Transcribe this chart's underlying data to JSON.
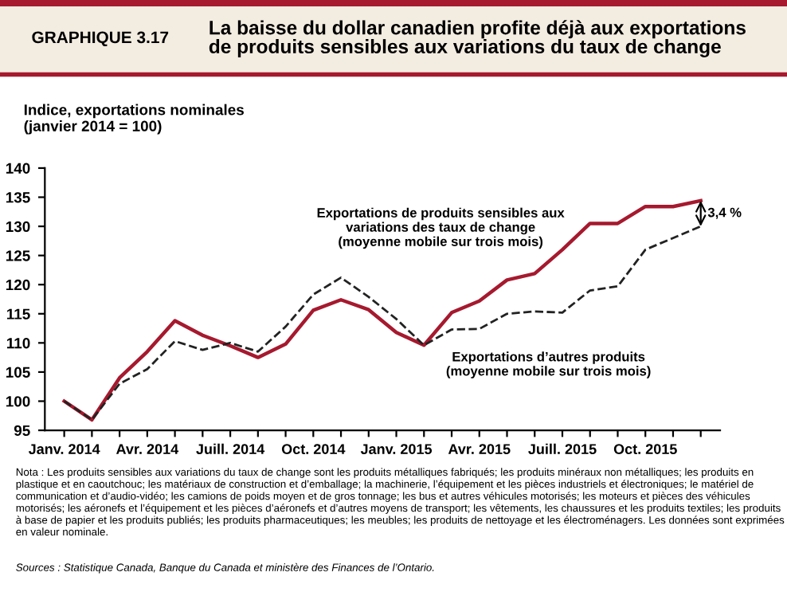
{
  "chart_data": {
    "type": "line",
    "subtitle": "GRAPHIQUE 3.17",
    "title": "La baisse du dollar canadien profite déjà aux exportations\nde produits sensibles aux variations du taux de change",
    "ylabel": "Indice, exportations nominales\n(janvier 2014 = 100)",
    "categories": [
      "Janv. 2014",
      null,
      null,
      "Avr. 2014",
      null,
      null,
      "Juill. 2014",
      null,
      null,
      "Oct. 2014",
      null,
      null,
      "Janv. 2015",
      null,
      null,
      "Avr. 2015",
      null,
      null,
      "Juill. 2015",
      null,
      null,
      "Oct. 2015",
      null,
      null
    ],
    "series": [
      {
        "name": "Exportations de produits sensibles aux\nvariations des taux de change\n(moyenne mobile sur trois mois)",
        "color": "#a6192e",
        "line_style": "solid",
        "values": [
          100,
          96.8,
          104,
          108.5,
          113.8,
          111.3,
          109.5,
          107.5,
          109.8,
          115.6,
          117.4,
          115.7,
          111.8,
          109.6,
          115.2,
          117.2,
          120.8,
          121.9,
          126,
          130.5,
          130.5,
          133.4,
          133.4,
          134.4
        ]
      },
      {
        "name": "Exportations d’autres produits\n(moyenne mobile sur trois mois)",
        "color": "#222222",
        "line_style": "dashed",
        "values": [
          100,
          96.8,
          103,
          105.5,
          110.3,
          108.8,
          110,
          108.5,
          112.8,
          118.3,
          121.2,
          117.9,
          114.1,
          109.6,
          112.3,
          112.4,
          115,
          115.4,
          115.2,
          119,
          119.7,
          126,
          128,
          130
        ]
      }
    ],
    "ylim": [
      95,
      140
    ],
    "yticks": [
      95,
      100,
      105,
      110,
      115,
      120,
      125,
      130,
      135,
      140
    ],
    "grid": false,
    "legend": false,
    "marker": "none",
    "annotations": [
      "3,4 %",
      "Nota : Les produits sensibles aux variations du taux de change sont les produits métalliques fabriqués; les produits minéraux non métalliques; les produits en plastique et en caoutchouc; les matériaux de construction et d’emballage; la machinerie, l’équipement et les pièces industriels et électroniques; le matériel de communication et d’audio-vidéo; les camions de poids moyen et de gros tonnage; les bus et autres véhicules motorisés; les moteurs et pièces des véhicules motorisés; les aéronefs et l’équipement et les pièces d’aéronefs et d’autres moyens de transport; les vêtements, les chaussures et les produits textiles; les produits à base de papier et les produits publiés; les produits pharmaceutiques; les meubles; les produits de nettoyage et les électroménagers. Les données sont exprimées en valeur nominale.",
      "Sources : Statistique Canada, Banque du Canada et ministère des Finances de l’Ontario."
    ]
  }
}
